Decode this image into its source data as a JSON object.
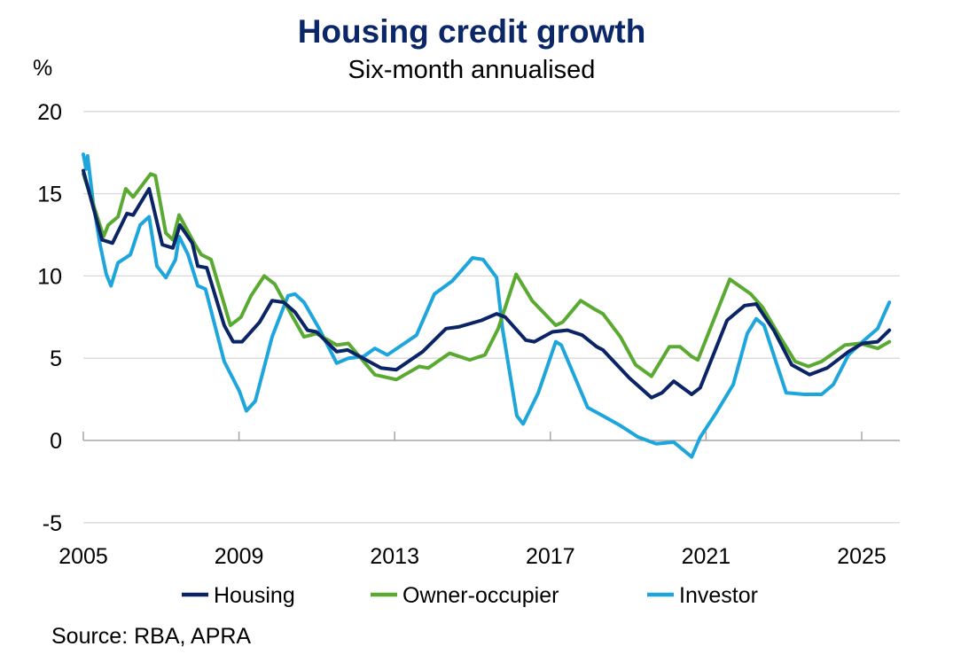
{
  "chart_data": {
    "type": "line",
    "title": "Housing credit growth",
    "subtitle": "Six-month annualised",
    "ylabel": "%",
    "xlabel": "",
    "ylim": [
      -5,
      20
    ],
    "yticks": [
      -5,
      0,
      5,
      10,
      15,
      20
    ],
    "xlim": [
      2005,
      2026
    ],
    "xticks": [
      2005,
      2009,
      2013,
      2017,
      2021,
      2025
    ],
    "grid": true,
    "legend": "bottom",
    "source": "Source: RBA, APRA",
    "series": [
      {
        "name": "Housing",
        "color": "#0b2466",
        "points": [
          [
            2005.0,
            16.4
          ],
          [
            2005.48,
            12.2
          ],
          [
            2005.75,
            12.0
          ],
          [
            2006.12,
            13.8
          ],
          [
            2006.28,
            13.7
          ],
          [
            2006.69,
            15.3
          ],
          [
            2007.03,
            11.9
          ],
          [
            2007.3,
            11.7
          ],
          [
            2007.48,
            13.1
          ],
          [
            2007.8,
            12.0
          ],
          [
            2007.94,
            10.6
          ],
          [
            2008.17,
            10.5
          ],
          [
            2008.62,
            7.0
          ],
          [
            2008.85,
            6.0
          ],
          [
            2009.08,
            6.0
          ],
          [
            2009.53,
            7.2
          ],
          [
            2009.85,
            8.5
          ],
          [
            2010.15,
            8.4
          ],
          [
            2010.44,
            7.8
          ],
          [
            2010.76,
            6.7
          ],
          [
            2010.99,
            6.6
          ],
          [
            2011.51,
            5.4
          ],
          [
            2011.79,
            5.5
          ],
          [
            2012.65,
            4.4
          ],
          [
            2013.04,
            4.3
          ],
          [
            2013.72,
            5.4
          ],
          [
            2014.32,
            6.8
          ],
          [
            2014.64,
            6.9
          ],
          [
            2015.23,
            7.3
          ],
          [
            2015.62,
            7.7
          ],
          [
            2015.84,
            7.5
          ],
          [
            2016.37,
            6.1
          ],
          [
            2016.59,
            6.0
          ],
          [
            2017.05,
            6.6
          ],
          [
            2017.44,
            6.7
          ],
          [
            2017.82,
            6.4
          ],
          [
            2018.19,
            5.7
          ],
          [
            2018.35,
            5.5
          ],
          [
            2019.03,
            3.8
          ],
          [
            2019.6,
            2.6
          ],
          [
            2019.87,
            2.9
          ],
          [
            2020.17,
            3.6
          ],
          [
            2020.63,
            2.8
          ],
          [
            2020.85,
            3.2
          ],
          [
            2021.54,
            7.3
          ],
          [
            2021.99,
            8.2
          ],
          [
            2022.29,
            8.3
          ],
          [
            2022.74,
            6.7
          ],
          [
            2023.2,
            4.6
          ],
          [
            2023.66,
            4.0
          ],
          [
            2024.11,
            4.4
          ],
          [
            2024.66,
            5.4
          ],
          [
            2025.02,
            5.9
          ],
          [
            2025.41,
            6.0
          ],
          [
            2025.71,
            6.7
          ]
        ]
      },
      {
        "name": "Owner-occupier",
        "color": "#5aaa32",
        "points": [
          [
            2005.0,
            16.2
          ],
          [
            2005.18,
            14.9
          ],
          [
            2005.52,
            12.4
          ],
          [
            2005.64,
            13.1
          ],
          [
            2005.89,
            13.6
          ],
          [
            2006.09,
            15.3
          ],
          [
            2006.28,
            14.8
          ],
          [
            2006.73,
            16.2
          ],
          [
            2006.85,
            16.1
          ],
          [
            2007.12,
            12.6
          ],
          [
            2007.3,
            12.2
          ],
          [
            2007.46,
            13.7
          ],
          [
            2007.87,
            11.9
          ],
          [
            2008.03,
            11.3
          ],
          [
            2008.28,
            11.0
          ],
          [
            2008.78,
            7.0
          ],
          [
            2009.05,
            7.5
          ],
          [
            2009.31,
            8.8
          ],
          [
            2009.65,
            10.0
          ],
          [
            2009.92,
            9.5
          ],
          [
            2010.31,
            7.8
          ],
          [
            2010.67,
            6.3
          ],
          [
            2010.99,
            6.5
          ],
          [
            2011.29,
            6.1
          ],
          [
            2011.51,
            5.8
          ],
          [
            2011.81,
            5.9
          ],
          [
            2012.49,
            4.0
          ],
          [
            2013.04,
            3.7
          ],
          [
            2013.63,
            4.5
          ],
          [
            2013.86,
            4.4
          ],
          [
            2014.41,
            5.3
          ],
          [
            2014.93,
            4.9
          ],
          [
            2015.32,
            5.2
          ],
          [
            2015.66,
            6.8
          ],
          [
            2016.12,
            10.1
          ],
          [
            2016.53,
            8.5
          ],
          [
            2017.14,
            7.0
          ],
          [
            2017.32,
            7.2
          ],
          [
            2017.78,
            8.5
          ],
          [
            2018.12,
            8.0
          ],
          [
            2018.35,
            7.7
          ],
          [
            2018.8,
            6.3
          ],
          [
            2019.19,
            4.6
          ],
          [
            2019.6,
            3.9
          ],
          [
            2020.06,
            5.7
          ],
          [
            2020.33,
            5.7
          ],
          [
            2020.63,
            5.1
          ],
          [
            2020.79,
            4.9
          ],
          [
            2021.61,
            9.8
          ],
          [
            2022.15,
            8.9
          ],
          [
            2022.45,
            8.1
          ],
          [
            2022.9,
            6.3
          ],
          [
            2023.29,
            4.8
          ],
          [
            2023.63,
            4.5
          ],
          [
            2023.97,
            4.8
          ],
          [
            2024.57,
            5.8
          ],
          [
            2024.95,
            5.9
          ],
          [
            2025.41,
            5.6
          ],
          [
            2025.71,
            6.0
          ]
        ]
      },
      {
        "name": "Investor",
        "color": "#1ea6dc",
        "points": [
          [
            2005.0,
            17.4
          ],
          [
            2005.07,
            16.5
          ],
          [
            2005.11,
            17.3
          ],
          [
            2005.25,
            14.5
          ],
          [
            2005.43,
            11.9
          ],
          [
            2005.59,
            10.1
          ],
          [
            2005.71,
            9.4
          ],
          [
            2005.89,
            10.8
          ],
          [
            2006.21,
            11.3
          ],
          [
            2006.46,
            13.1
          ],
          [
            2006.69,
            13.6
          ],
          [
            2006.89,
            10.6
          ],
          [
            2007.12,
            9.9
          ],
          [
            2007.37,
            11.0
          ],
          [
            2007.46,
            12.4
          ],
          [
            2007.69,
            11.3
          ],
          [
            2007.94,
            9.4
          ],
          [
            2008.14,
            9.2
          ],
          [
            2008.62,
            4.8
          ],
          [
            2009.01,
            3.0
          ],
          [
            2009.19,
            1.8
          ],
          [
            2009.42,
            2.4
          ],
          [
            2009.85,
            6.3
          ],
          [
            2010.26,
            8.8
          ],
          [
            2010.44,
            8.9
          ],
          [
            2010.67,
            8.4
          ],
          [
            2011.06,
            6.8
          ],
          [
            2011.51,
            4.7
          ],
          [
            2011.81,
            5.0
          ],
          [
            2012.2,
            5.1
          ],
          [
            2012.49,
            5.6
          ],
          [
            2012.81,
            5.2
          ],
          [
            2013.56,
            6.4
          ],
          [
            2014.02,
            8.9
          ],
          [
            2014.48,
            9.7
          ],
          [
            2015.0,
            11.1
          ],
          [
            2015.27,
            11.0
          ],
          [
            2015.62,
            9.9
          ],
          [
            2015.77,
            6.8
          ],
          [
            2016.14,
            1.5
          ],
          [
            2016.3,
            1.0
          ],
          [
            2016.69,
            2.9
          ],
          [
            2017.14,
            6.0
          ],
          [
            2017.28,
            5.8
          ],
          [
            2017.96,
            2.0
          ],
          [
            2018.35,
            1.5
          ],
          [
            2018.8,
            0.9
          ],
          [
            2019.26,
            0.2
          ],
          [
            2019.72,
            -0.2
          ],
          [
            2020.17,
            -0.1
          ],
          [
            2020.63,
            -1.0
          ],
          [
            2020.85,
            0.2
          ],
          [
            2021.24,
            1.6
          ],
          [
            2021.7,
            3.4
          ],
          [
            2022.06,
            6.5
          ],
          [
            2022.29,
            7.4
          ],
          [
            2022.49,
            7.0
          ],
          [
            2023.06,
            2.9
          ],
          [
            2023.52,
            2.8
          ],
          [
            2023.97,
            2.8
          ],
          [
            2024.27,
            3.4
          ],
          [
            2024.66,
            5.2
          ],
          [
            2025.02,
            6.0
          ],
          [
            2025.41,
            6.8
          ],
          [
            2025.71,
            8.4
          ]
        ]
      }
    ]
  }
}
